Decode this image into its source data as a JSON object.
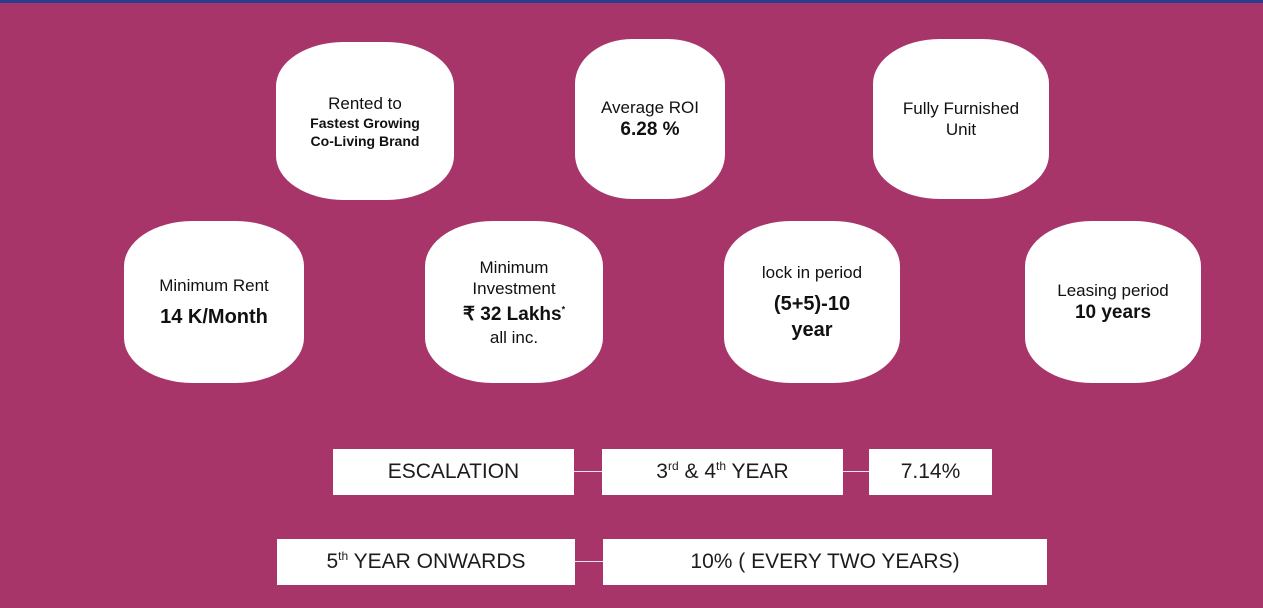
{
  "hexagons": {
    "rented": {
      "line1": "Rented to",
      "line2": "Fastest Growing",
      "line3": "Co-Living Brand"
    },
    "roi": {
      "label": "Average ROI",
      "value": "6.28 %"
    },
    "furnished": {
      "line1": "Fully Furnished",
      "line2": "Unit"
    },
    "min_rent": {
      "label": "Minimum Rent",
      "value": "14 K/Month"
    },
    "min_investment": {
      "line1": "Minimum",
      "line2": "Investment",
      "value": "₹ 32 Lakhs",
      "asterisk": "*",
      "note": "all inc."
    },
    "lock_in": {
      "label": "lock in period",
      "value1": "(5+5)-10",
      "value2": "year"
    },
    "leasing": {
      "label": "Leasing period",
      "value": "10 years"
    }
  },
  "escalation": {
    "label": "ESCALATION",
    "year_prefix": "3",
    "year_sup1": "rd",
    "year_mid": " & 4",
    "year_sup2": "th",
    "year_suffix": " YEAR",
    "rate": "7.14%"
  },
  "onwards": {
    "prefix": "5",
    "sup": "th",
    "suffix": " YEAR ONWARDS",
    "rate": "10% ( EVERY TWO YEARS)"
  },
  "colors": {
    "background": "#a8356a",
    "card": "#ffffff",
    "top_bar": "#2b3c8a"
  }
}
